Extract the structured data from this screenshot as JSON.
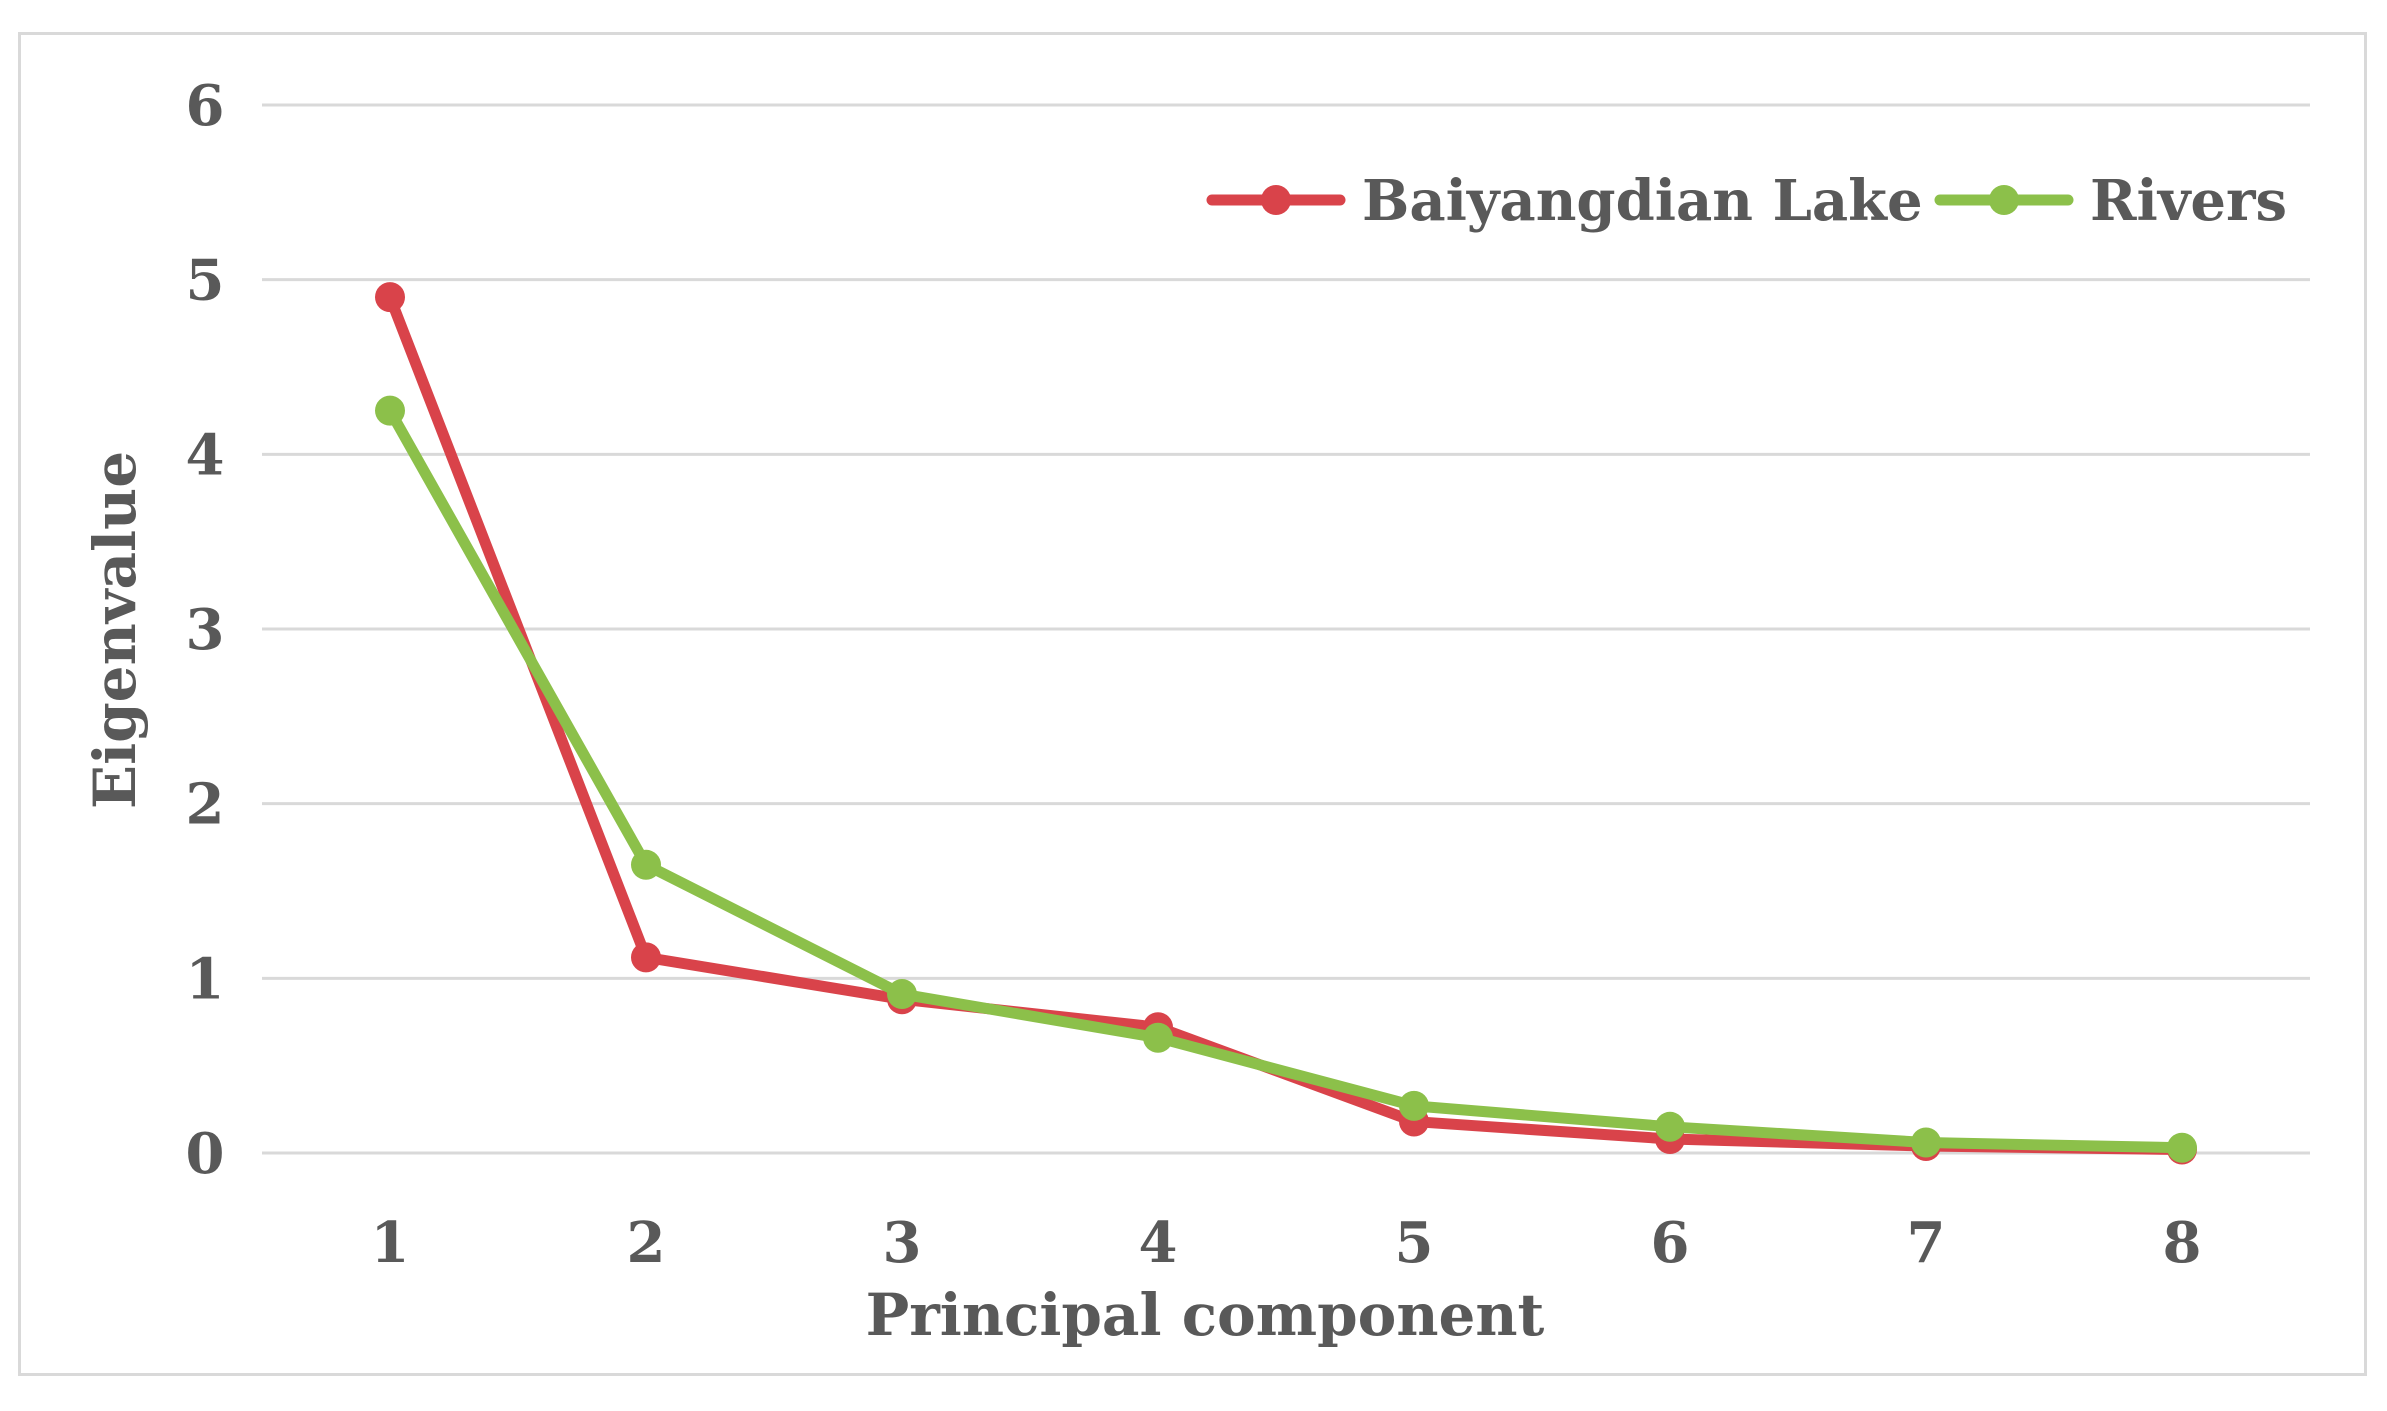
{
  "chart_data": {
    "type": "line",
    "title": "",
    "xlabel": "Principal component",
    "ylabel": "Eigenvalue",
    "x": [
      1,
      2,
      3,
      4,
      5,
      6,
      7,
      8
    ],
    "x_tick_labels": [
      "1",
      "2",
      "3",
      "4",
      "5",
      "6",
      "7",
      "8"
    ],
    "y_tick_labels": [
      "0",
      "1",
      "2",
      "3",
      "4",
      "5",
      "6"
    ],
    "ylim": [
      0,
      6
    ],
    "grid": true,
    "legend_position": "top-right",
    "series": [
      {
        "name": "Baiyangdian Lake",
        "color": "#d9434a",
        "values": [
          4.9,
          1.12,
          0.88,
          0.72,
          0.18,
          0.08,
          0.04,
          0.02
        ]
      },
      {
        "name": "Rivers",
        "color": "#8cc04a",
        "values": [
          4.25,
          1.65,
          0.91,
          0.66,
          0.27,
          0.15,
          0.06,
          0.03
        ]
      }
    ]
  }
}
